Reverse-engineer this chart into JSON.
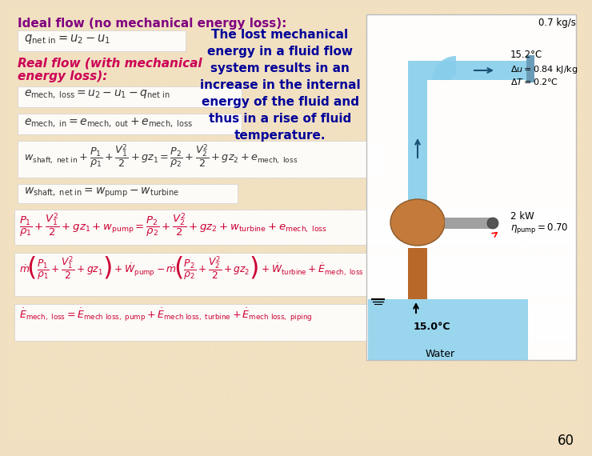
{
  "bg_color": "#f0dfc0",
  "title_ideal": "Ideal flow (no mechanical energy loss):",
  "title_ideal_color": "#800080",
  "title_real_line1": "Real flow (with mechanical",
  "title_real_line2": "energy loss):",
  "title_real_color": "#cc0055",
  "description_text": "The lost mechanical\nenergy in a fluid flow\nsystem results in an\nincrease in the internal\nenergy of the fluid and\nthus in a rise of fluid\ntemperature.",
  "description_color": "#000099",
  "page_number": "60",
  "eq_dark": "#333333",
  "eq_maroon": "#cc0033",
  "diagram_label_color": "#111111",
  "water_blue": "#87ceeb",
  "pipe_blue": "#87ceeb",
  "pump_brown": "#c47a3a",
  "shaft_brown": "#b8692a",
  "gray_pipe": "#a0a0a0",
  "white_box": "#ffffff",
  "diagram_bg": "#ffffff"
}
